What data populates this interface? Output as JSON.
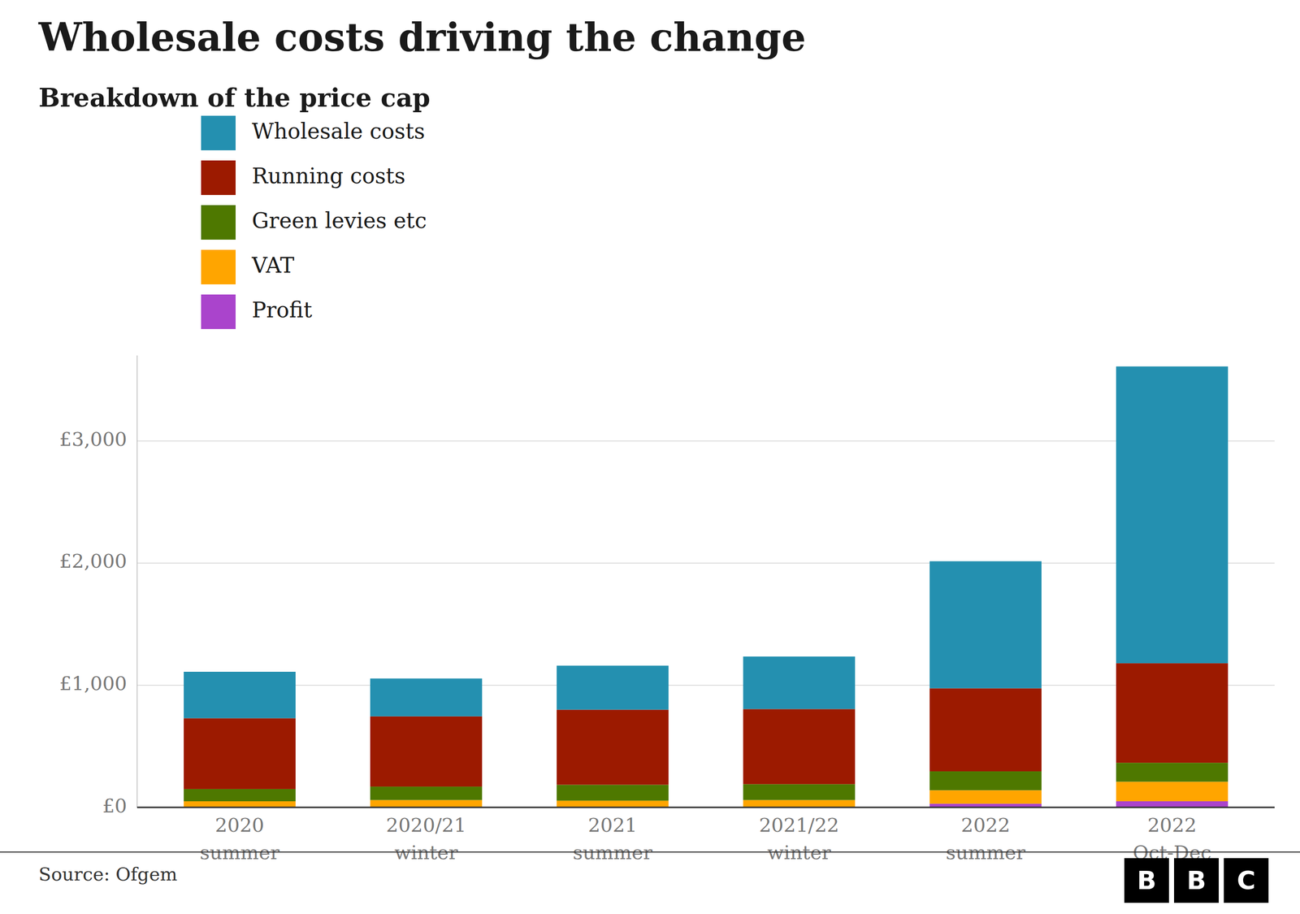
{
  "chart_data": {
    "type": "bar",
    "stacked": true,
    "title": "Wholesale costs driving the change",
    "subtitle": "Breakdown of the price cap",
    "source": "Source: Ofgem",
    "logo": "BBC",
    "categories": [
      "2020\nsummer",
      "2020/21\nwinter",
      "2021\nsummer",
      "2021/22\nwinter",
      "2022\nsummer",
      "2022\nOct-Dec"
    ],
    "series": [
      {
        "name": "Profit",
        "color": "#AA44CC",
        "values": [
          0,
          0,
          0,
          0,
          30,
          50
        ]
      },
      {
        "name": "VAT",
        "color": "#FFA500",
        "values": [
          50,
          60,
          55,
          60,
          110,
          160
        ]
      },
      {
        "name": "Green levies etc",
        "color": "#4E7800",
        "values": [
          100,
          110,
          130,
          130,
          155,
          155
        ]
      },
      {
        "name": "Running costs",
        "color": "#9C1A00",
        "values": [
          580,
          575,
          615,
          615,
          680,
          815
        ]
      },
      {
        "name": "Wholesale costs",
        "color": "#2490B0",
        "values": [
          380,
          310,
          360,
          430,
          1040,
          2430
        ]
      }
    ],
    "ylim": [
      0,
      3700
    ],
    "yticks": [
      {
        "value": 0,
        "label": "£0"
      },
      {
        "value": 1000,
        "label": "£1,000"
      },
      {
        "value": 2000,
        "label": "£2,000"
      },
      {
        "value": 3000,
        "label": "£3,000"
      }
    ],
    "grid": true,
    "legend": "top-left"
  }
}
